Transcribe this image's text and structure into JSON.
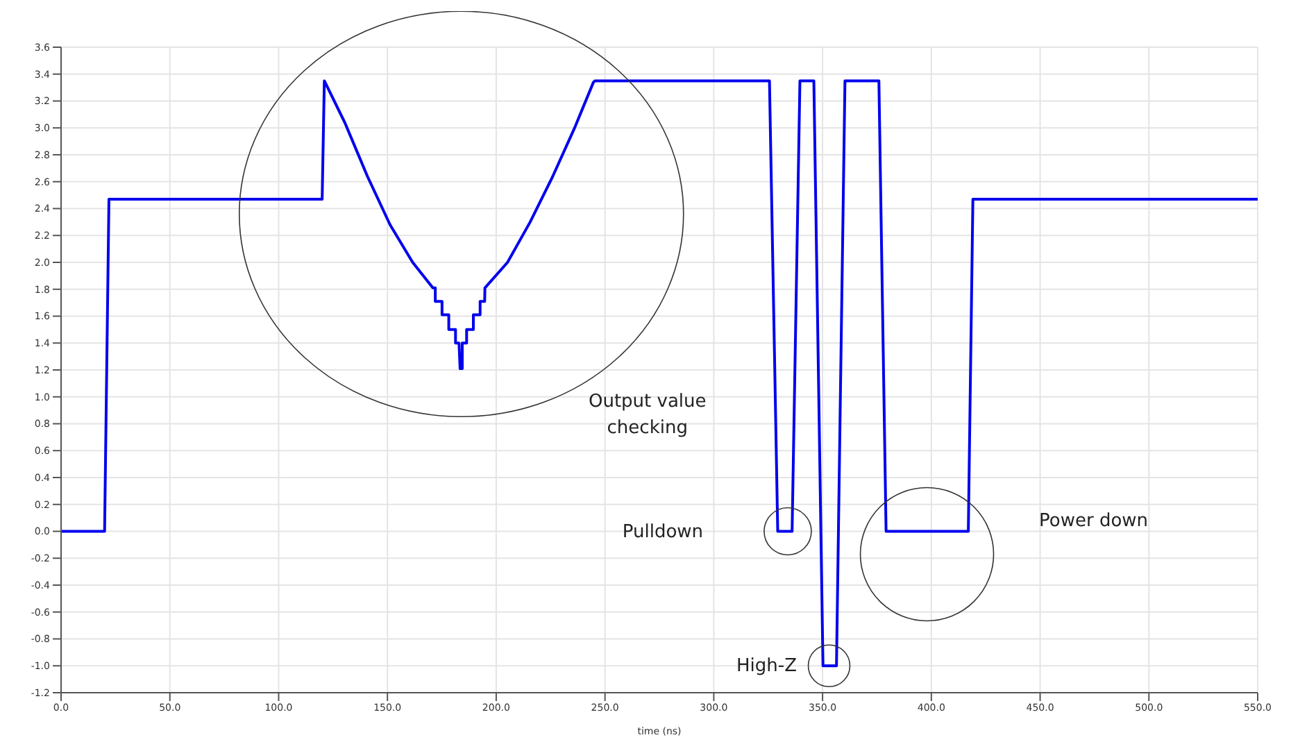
{
  "chart_data": {
    "type": "line",
    "xlabel": "time (ns)",
    "x": [
      0,
      20,
      22,
      120,
      121,
      130.4,
      140.8,
      151.2,
      161.6,
      170.9,
      172,
      172,
      175.1,
      175.1,
      178.2,
      178.2,
      181.3,
      181.3,
      182.9,
      183.4,
      184.4,
      184.4,
      186.4,
      186.4,
      189.5,
      189.5,
      192.6,
      192.6,
      194.7,
      194.8,
      205.2,
      215.6,
      226,
      236.3,
      244.7,
      245.5,
      325.6,
      329.4,
      336,
      339.6,
      346,
      350.2,
      356.4,
      360.3,
      375.9,
      379.2,
      417,
      419.1,
      550
    ],
    "series": [
      {
        "color": "#0000ee",
        "values": [
          0,
          0,
          2.47,
          2.47,
          3.35,
          3.04,
          2.64,
          2.28,
          2.0,
          1.81,
          1.81,
          1.71,
          1.71,
          1.61,
          1.61,
          1.5,
          1.5,
          1.4,
          1.4,
          1.21,
          1.21,
          1.4,
          1.4,
          1.5,
          1.5,
          1.61,
          1.61,
          1.71,
          1.71,
          1.81,
          2.0,
          2.3,
          2.64,
          3.01,
          3.34,
          3.35,
          3.35,
          0,
          0,
          3.35,
          3.35,
          -1.0,
          -1.0,
          3.35,
          3.35,
          0,
          0,
          2.47,
          2.47
        ]
      }
    ],
    "annotations": [
      "Output value checking",
      "Pulldown",
      "High-Z",
      "Power down"
    ],
    "xlim": [
      0,
      550
    ],
    "xticks": [
      {
        "value": 0,
        "label": "0.0"
      },
      {
        "value": 50,
        "label": "50.0"
      },
      {
        "value": 100,
        "label": "100.0"
      },
      {
        "value": 150,
        "label": "150.0"
      },
      {
        "value": 200,
        "label": "200.0"
      },
      {
        "value": 250,
        "label": "250.0"
      },
      {
        "value": 300,
        "label": "300.0"
      },
      {
        "value": 350,
        "label": "350.0"
      },
      {
        "value": 400,
        "label": "400.0"
      },
      {
        "value": 450,
        "label": "450.0"
      },
      {
        "value": 500,
        "label": "500.0"
      },
      {
        "value": 550,
        "label": "550.0"
      }
    ],
    "ylim": [
      -1.2,
      3.6
    ],
    "yticks": [
      {
        "value": -1.2,
        "label": "-1.2"
      },
      {
        "value": -1.0,
        "label": "-1.0"
      },
      {
        "value": -0.8,
        "label": "-0.8"
      },
      {
        "value": -0.6,
        "label": "-0.6"
      },
      {
        "value": -0.4,
        "label": "-0.4"
      },
      {
        "value": -0.2,
        "label": "-0.2"
      },
      {
        "value": 0,
        "label": "0.0"
      },
      {
        "value": 0.2,
        "label": "0.2"
      },
      {
        "value": 0.4,
        "label": "0.4"
      },
      {
        "value": 0.6,
        "label": "0.6"
      },
      {
        "value": 0.8,
        "label": "0.8"
      },
      {
        "value": 1.0,
        "label": "1.0"
      },
      {
        "value": 1.2,
        "label": "1.2"
      },
      {
        "value": 1.4,
        "label": "1.4"
      },
      {
        "value": 1.6,
        "label": "1.6"
      },
      {
        "value": 1.8,
        "label": "1.8"
      },
      {
        "value": 2.0,
        "label": "2.0"
      },
      {
        "value": 2.2,
        "label": "2.2"
      },
      {
        "value": 2.4,
        "label": "2.4"
      },
      {
        "value": 2.6,
        "label": "2.6"
      },
      {
        "value": 2.8,
        "label": "2.8"
      },
      {
        "value": 3.0,
        "label": "3.0"
      },
      {
        "value": 3.2,
        "label": "3.2"
      },
      {
        "value": 3.4,
        "label": "3.4"
      },
      {
        "value": 3.6,
        "label": "3.6"
      }
    ],
    "grid": true,
    "marker": "none",
    "line_style": "solid",
    "legend": false
  }
}
